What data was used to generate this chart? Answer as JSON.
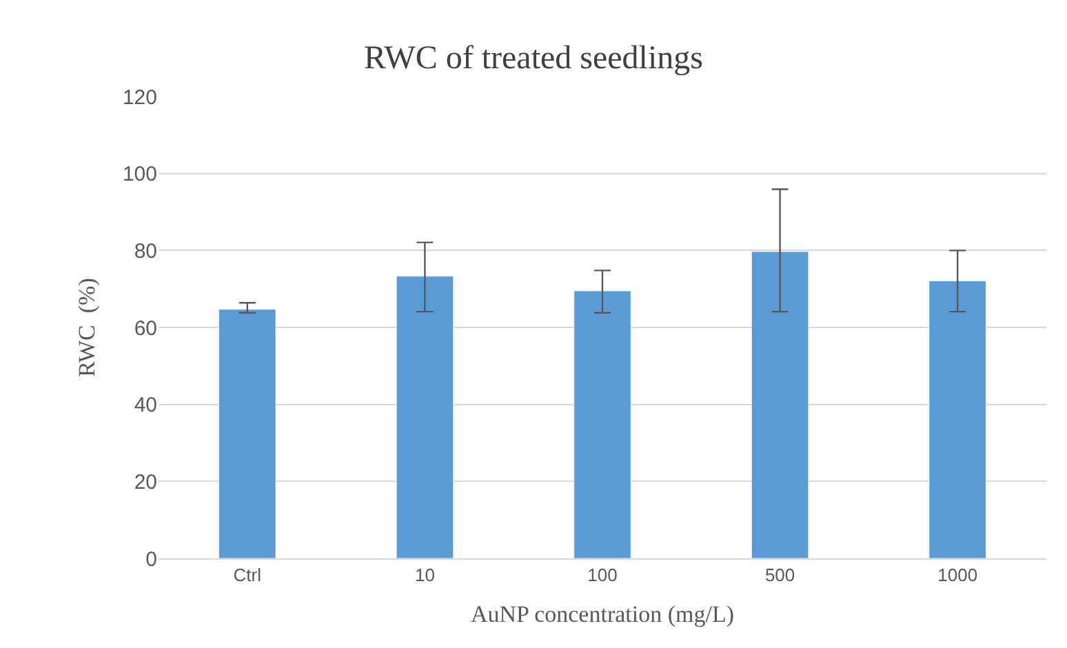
{
  "chart_data": {
    "type": "bar",
    "title": "RWC of treated seedlings",
    "xlabel": "AuNP concentration (mg/L)",
    "ylabel": "RWC  (%)",
    "categories": [
      "Ctrl",
      "10",
      "100",
      "500",
      "1000"
    ],
    "values": [
      64.7,
      73.3,
      69.5,
      79.7,
      72.1
    ],
    "errors": [
      [
        63.8,
        66.4
      ],
      [
        64.1,
        82.1
      ],
      [
        63.8,
        74.8
      ],
      [
        64.1,
        95.9
      ],
      [
        64.1,
        80.0
      ]
    ],
    "color": "#5b9bd5",
    "ylim": [
      0,
      120
    ],
    "yticks": [
      0,
      20,
      40,
      60,
      80,
      100,
      120
    ],
    "grid": "y",
    "legend": false
  }
}
